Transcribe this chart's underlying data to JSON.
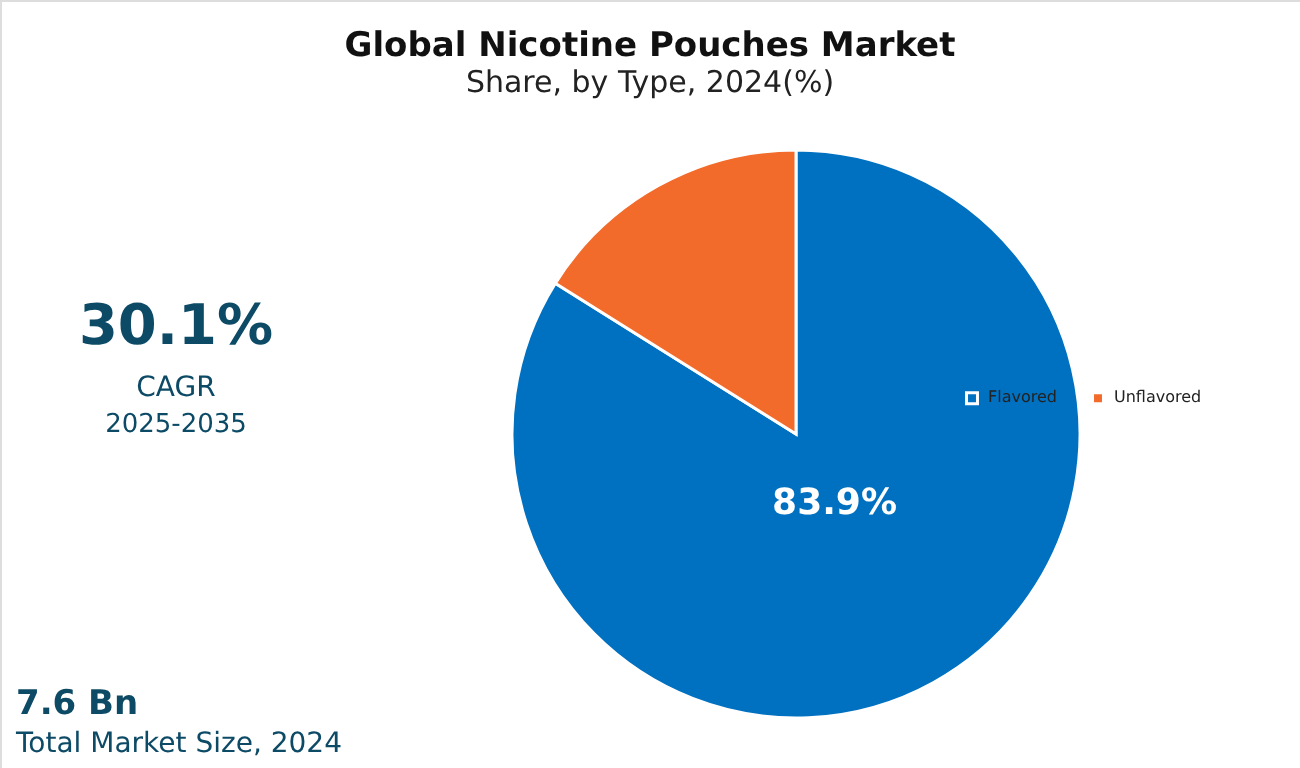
{
  "chart_data": {
    "type": "pie",
    "title": "Global Nicotine Pouches Market",
    "subtitle": "Share, by Type, 2024(%)",
    "categories": [
      "Flavored",
      "Unflavored"
    ],
    "values": [
      83.9,
      16.1
    ],
    "colors": [
      "#0070c0",
      "#f26b2a"
    ],
    "value_labels": [
      "83.9%",
      null
    ],
    "legend": "right",
    "annotations": [
      "30.1%",
      "CAGR",
      "2025-2035",
      "7.6 Bn",
      "Total Market Size, 2024"
    ]
  }
}
